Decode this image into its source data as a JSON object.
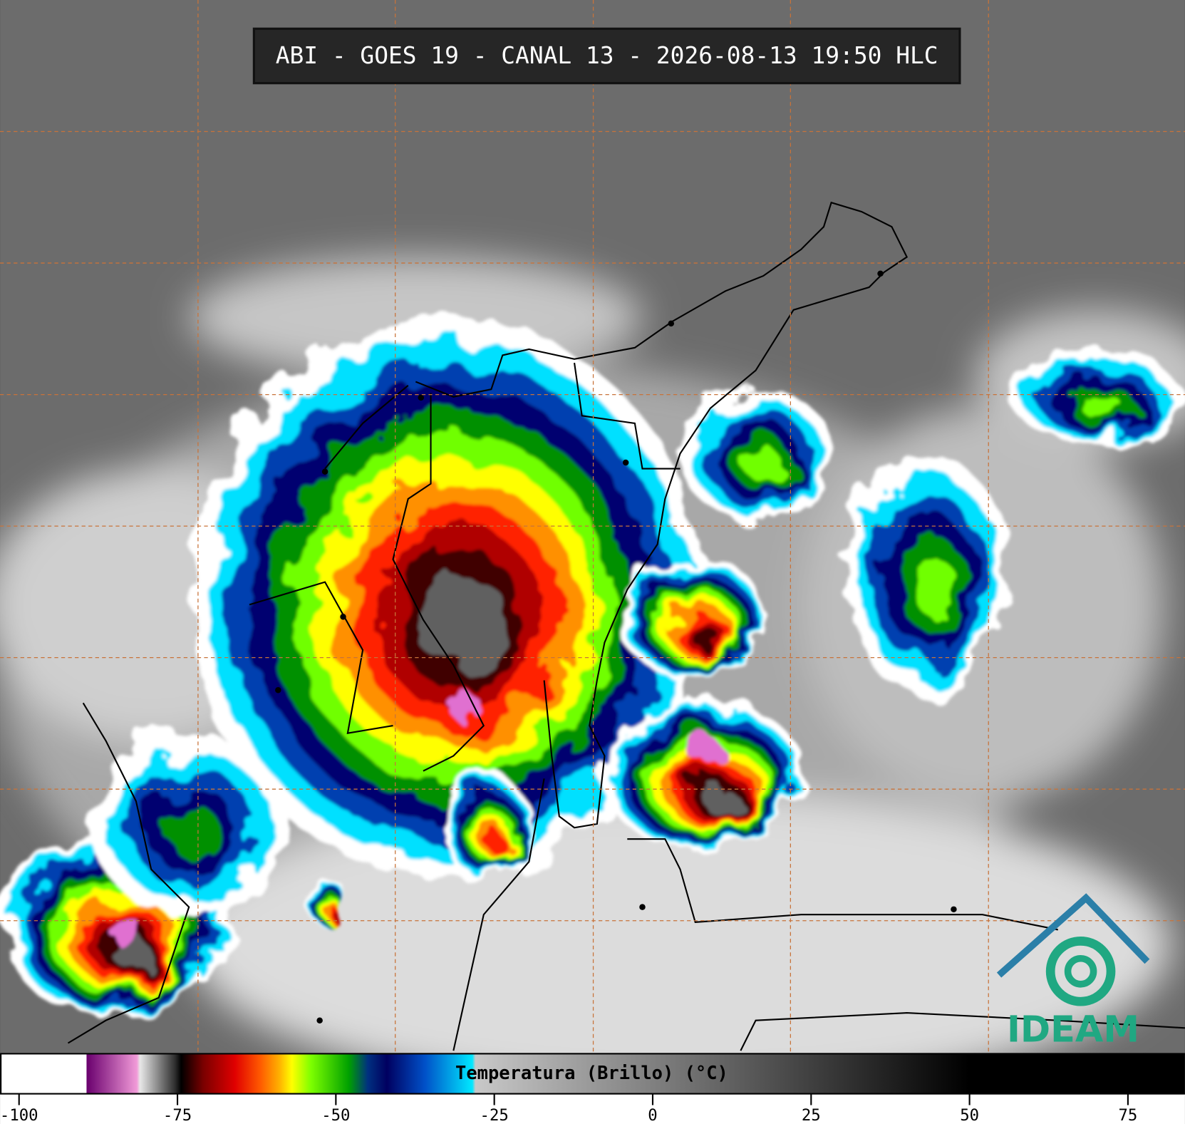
{
  "title": "ABI - GOES 19 - CANAL 13 - 2026-08-13 19:50 HLC",
  "logo": "IDEAM",
  "colorbar": {
    "label": "Temperatura (Brillo) (°C)",
    "lim": [
      -103,
      84
    ],
    "ticks": [
      -100,
      -75,
      -50,
      -25,
      0,
      25,
      50,
      75
    ],
    "colors": [
      {
        "value": -103,
        "color": "#ffffff"
      },
      {
        "value": -89.5,
        "color": "#ffffff"
      },
      {
        "value": -89.4,
        "color": "#6a006e"
      },
      {
        "value": -81.5,
        "color": "#f19ad8"
      },
      {
        "value": -81,
        "color": "#e8e8e8"
      },
      {
        "value": -75.5,
        "color": "#303030"
      },
      {
        "value": -74.5,
        "color": "#000000"
      },
      {
        "value": -71,
        "color": "#7a0000"
      },
      {
        "value": -66,
        "color": "#e00000"
      },
      {
        "value": -62,
        "color": "#ff5a00"
      },
      {
        "value": -59,
        "color": "#ffb000"
      },
      {
        "value": -57,
        "color": "#ffff00"
      },
      {
        "value": -54,
        "color": "#7dff00"
      },
      {
        "value": -48,
        "color": "#00a000"
      },
      {
        "value": -45,
        "color": "#003080"
      },
      {
        "value": -42,
        "color": "#000060"
      },
      {
        "value": -36,
        "color": "#0050c8"
      },
      {
        "value": -28.5,
        "color": "#00e8ff"
      },
      {
        "value": -28,
        "color": "#c8c8c8"
      },
      {
        "value": 50,
        "color": "#000000"
      },
      {
        "value": 84,
        "color": "#000000"
      }
    ]
  }
}
